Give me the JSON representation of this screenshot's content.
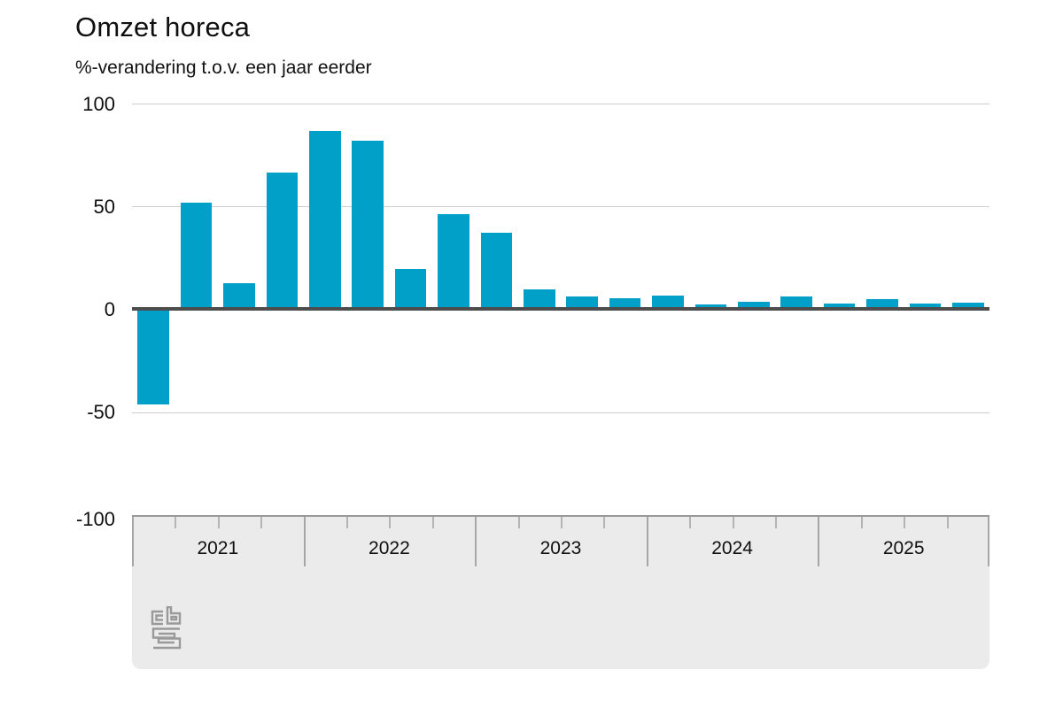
{
  "header": {
    "title": "Omzet horeca",
    "subtitle": "%-verandering t.o.v. een jaar eerder"
  },
  "chart_data": {
    "type": "bar",
    "title": "Omzet horeca",
    "subtitle": "%-verandering t.o.v. een jaar eerder",
    "x": [
      "2021 K1",
      "2021 K2",
      "2021 K3",
      "2021 K4",
      "2022 K1",
      "2022 K2",
      "2022 K3",
      "2022 K4",
      "2023 K1",
      "2023 K2",
      "2023 K3",
      "2023 K4",
      "2024 K1",
      "2024 K2",
      "2024 K3",
      "2024 K4",
      "2025 K1",
      "2025 K2",
      "2025 K3",
      "2025 K4"
    ],
    "values": [
      -46,
      52,
      13,
      66.5,
      87,
      82,
      20,
      46.5,
      37.5,
      10,
      6.5,
      5.5,
      7,
      2.5,
      4,
      6.5,
      3,
      5,
      3,
      3.5
    ],
    "x_year_labels": [
      "2021",
      "2022",
      "2023",
      "2024",
      "2025"
    ],
    "y_ticks": [
      100,
      50,
      0,
      -50,
      -100
    ],
    "ylim": [
      -100,
      100
    ],
    "ylabel": "%-verandering t.o.v. een jaar eerder",
    "xlabel": "",
    "grid": true,
    "legend": false,
    "bar_color": "#00a0c8"
  },
  "branding": {
    "logo_name": "cbs-logo",
    "logo_color": "#9a9a9a"
  },
  "colors": {
    "bar": "#00a0c8",
    "zero_line": "#4d4d4d",
    "gridline": "#cdcdcd",
    "axis_band_bg": "#ebebeb",
    "axis_band_border": "#999999",
    "quarter_tick": "#b4b4b4",
    "year_divider": "#a6a6a6",
    "text": "#0f0f0f"
  }
}
